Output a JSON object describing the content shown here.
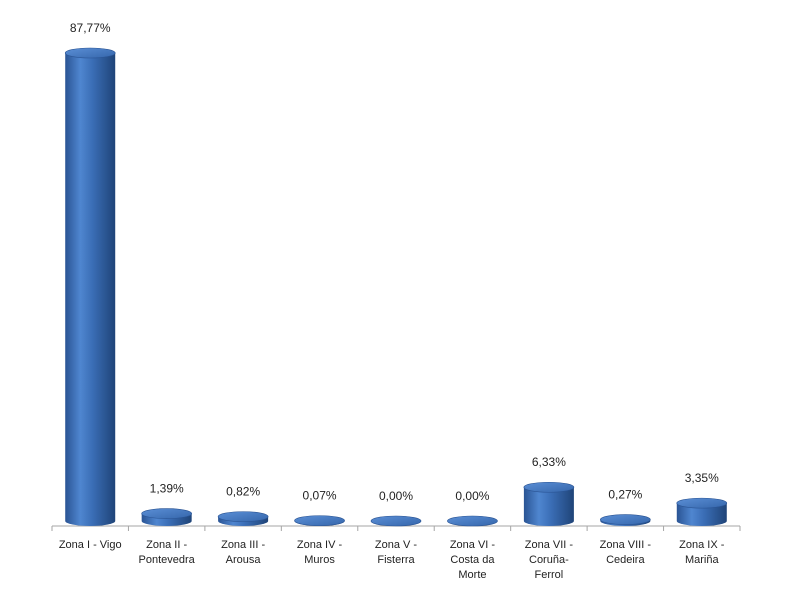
{
  "chart_data": {
    "type": "bar",
    "style": "3d-cylinder",
    "bar_color": "#3A6DB5",
    "categories": [
      "Zona I - Vigo",
      "Zona II - Pontevedra",
      "Zona III - Arousa",
      "Zona IV - Muros",
      "Zona V - Fisterra",
      "Zona VI - Costa da Morte",
      "Zona VII - Coruña-Ferrol",
      "Zona VIII - Cedeira",
      "Zona IX - Mariña"
    ],
    "category_lines": [
      [
        "Zona I - Vigo"
      ],
      [
        "Zona II -",
        "Pontevedra"
      ],
      [
        "Zona III -",
        "Arousa"
      ],
      [
        "Zona IV -",
        "Muros"
      ],
      [
        "Zona V -",
        "Fisterra"
      ],
      [
        "Zona VI -",
        "Costa da",
        "Morte"
      ],
      [
        "Zona VII -",
        "Coruña-",
        "Ferrol"
      ],
      [
        "Zona VIII -",
        "Cedeira"
      ],
      [
        "Zona IX -",
        "Mariña"
      ]
    ],
    "values": [
      87.77,
      1.39,
      0.82,
      0.07,
      0.0,
      0.0,
      6.33,
      0.27,
      3.35
    ],
    "labels": [
      "87,77%",
      "1,39%",
      "0,82%",
      "0,07%",
      "0,00%",
      "0,00%",
      "6,33%",
      "0,27%",
      "3,35%"
    ],
    "ylim": [
      0,
      100
    ],
    "grid": false,
    "title": "",
    "xlabel": "",
    "ylabel": ""
  }
}
